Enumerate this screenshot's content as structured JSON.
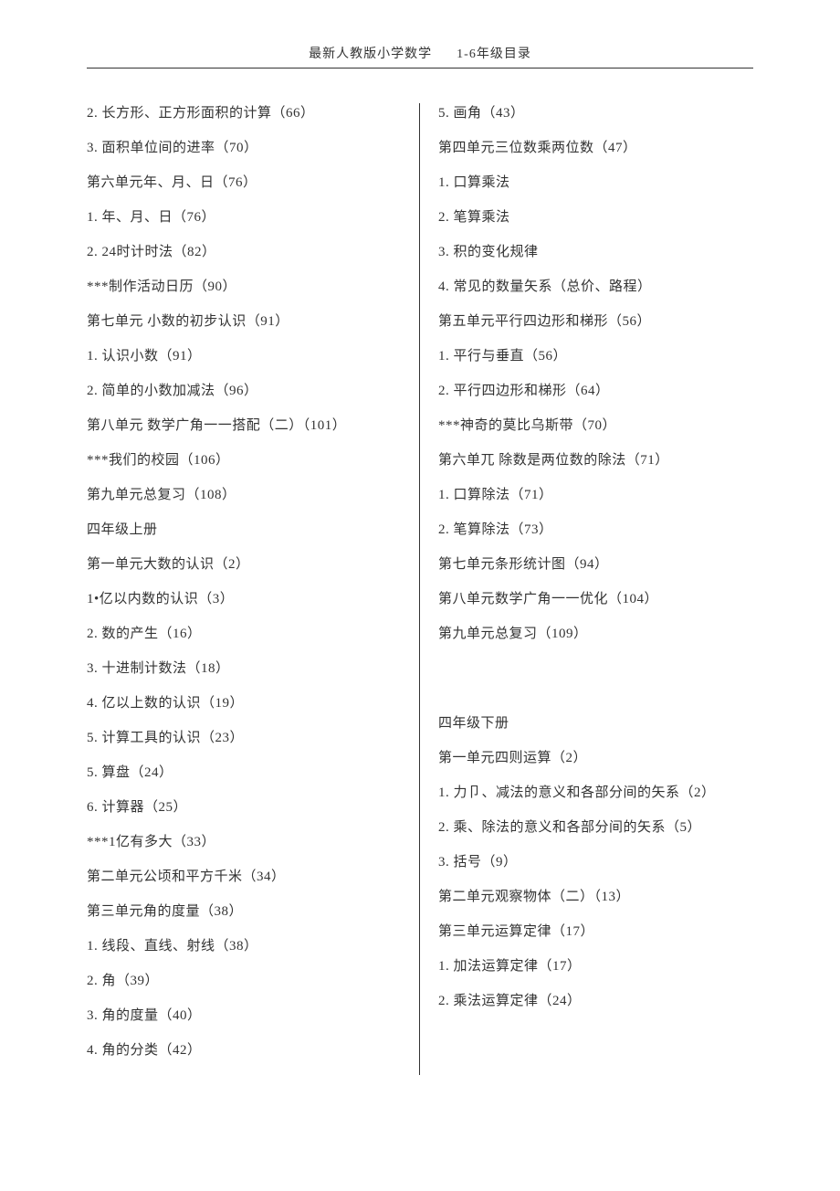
{
  "header": {
    "text_left": "最新人教版小学数学",
    "text_right": "1-6年级目录"
  },
  "left_column": [
    "2. 长方形、正方形面积的计算（66）",
    "3. 面积单位间的进率（70）",
    "第六单元年、月、日（76）",
    "1. 年、月、日（76）",
    "2. 24时计时法（82）",
    "***制作活动日历（90）",
    "第七单元 小数的初步认识（91）",
    "1. 认识小数（91）",
    "2. 简单的小数加减法（96）",
    "第八单元 数学广角一一搭配（二）（101）",
    "***我们的校园（106）",
    "第九单元总复习（108）",
    "四年级上册",
    "第一单元大数的认识（2）",
    "1•亿以内数的认识（3）",
    "2. 数的产生（16）",
    "3. 十进制计数法（18）",
    "4. 亿以上数的认识（19）",
    "5. 计算工具的认识（23）",
    "5. 算盘（24）",
    "6. 计算器（25）",
    "***1亿有多大（33）",
    "第二单元公顷和平方千米（34）",
    "第三单元角的度量（38）",
    "1. 线段、直线、射线（38）",
    "2. 角（39）",
    "3. 角的度量（40）",
    "4. 角的分类（42）"
  ],
  "right_column_a": [
    "5. 画角（43）",
    "第四单元三位数乘两位数（47）",
    "1. 口算乘法",
    "2. 笔算乘法",
    "3. 积的变化规律",
    "4. 常见的数量矢系（总价、路程）",
    "第五单元平行四边形和梯形（56）",
    "1. 平行与垂直（56）",
    "2. 平行四边形和梯形（64）",
    "***神奇的莫比乌斯带（70）",
    "第六单兀 除数是两位数的除法（71）",
    "1. 口算除法（71）",
    "2. 笔算除法（73）",
    "第七单元条形统计图（94）",
    "第八单元数学广角一一优化（104）",
    "第九单元总复习（109）"
  ],
  "right_column_b": [
    "四年级下册",
    "第一单元四则运算（2）",
    "1. 力卩、减法的意义和各部分间的矢系（2）",
    "2. 乘、除法的意义和各部分间的矢系（5）",
    "3. 括号（9）",
    "第二单元观察物体（二）（13）",
    "第三单元运算定律（17）",
    "1. 加法运算定律（17）",
    "2. 乘法运算定律（24）"
  ]
}
